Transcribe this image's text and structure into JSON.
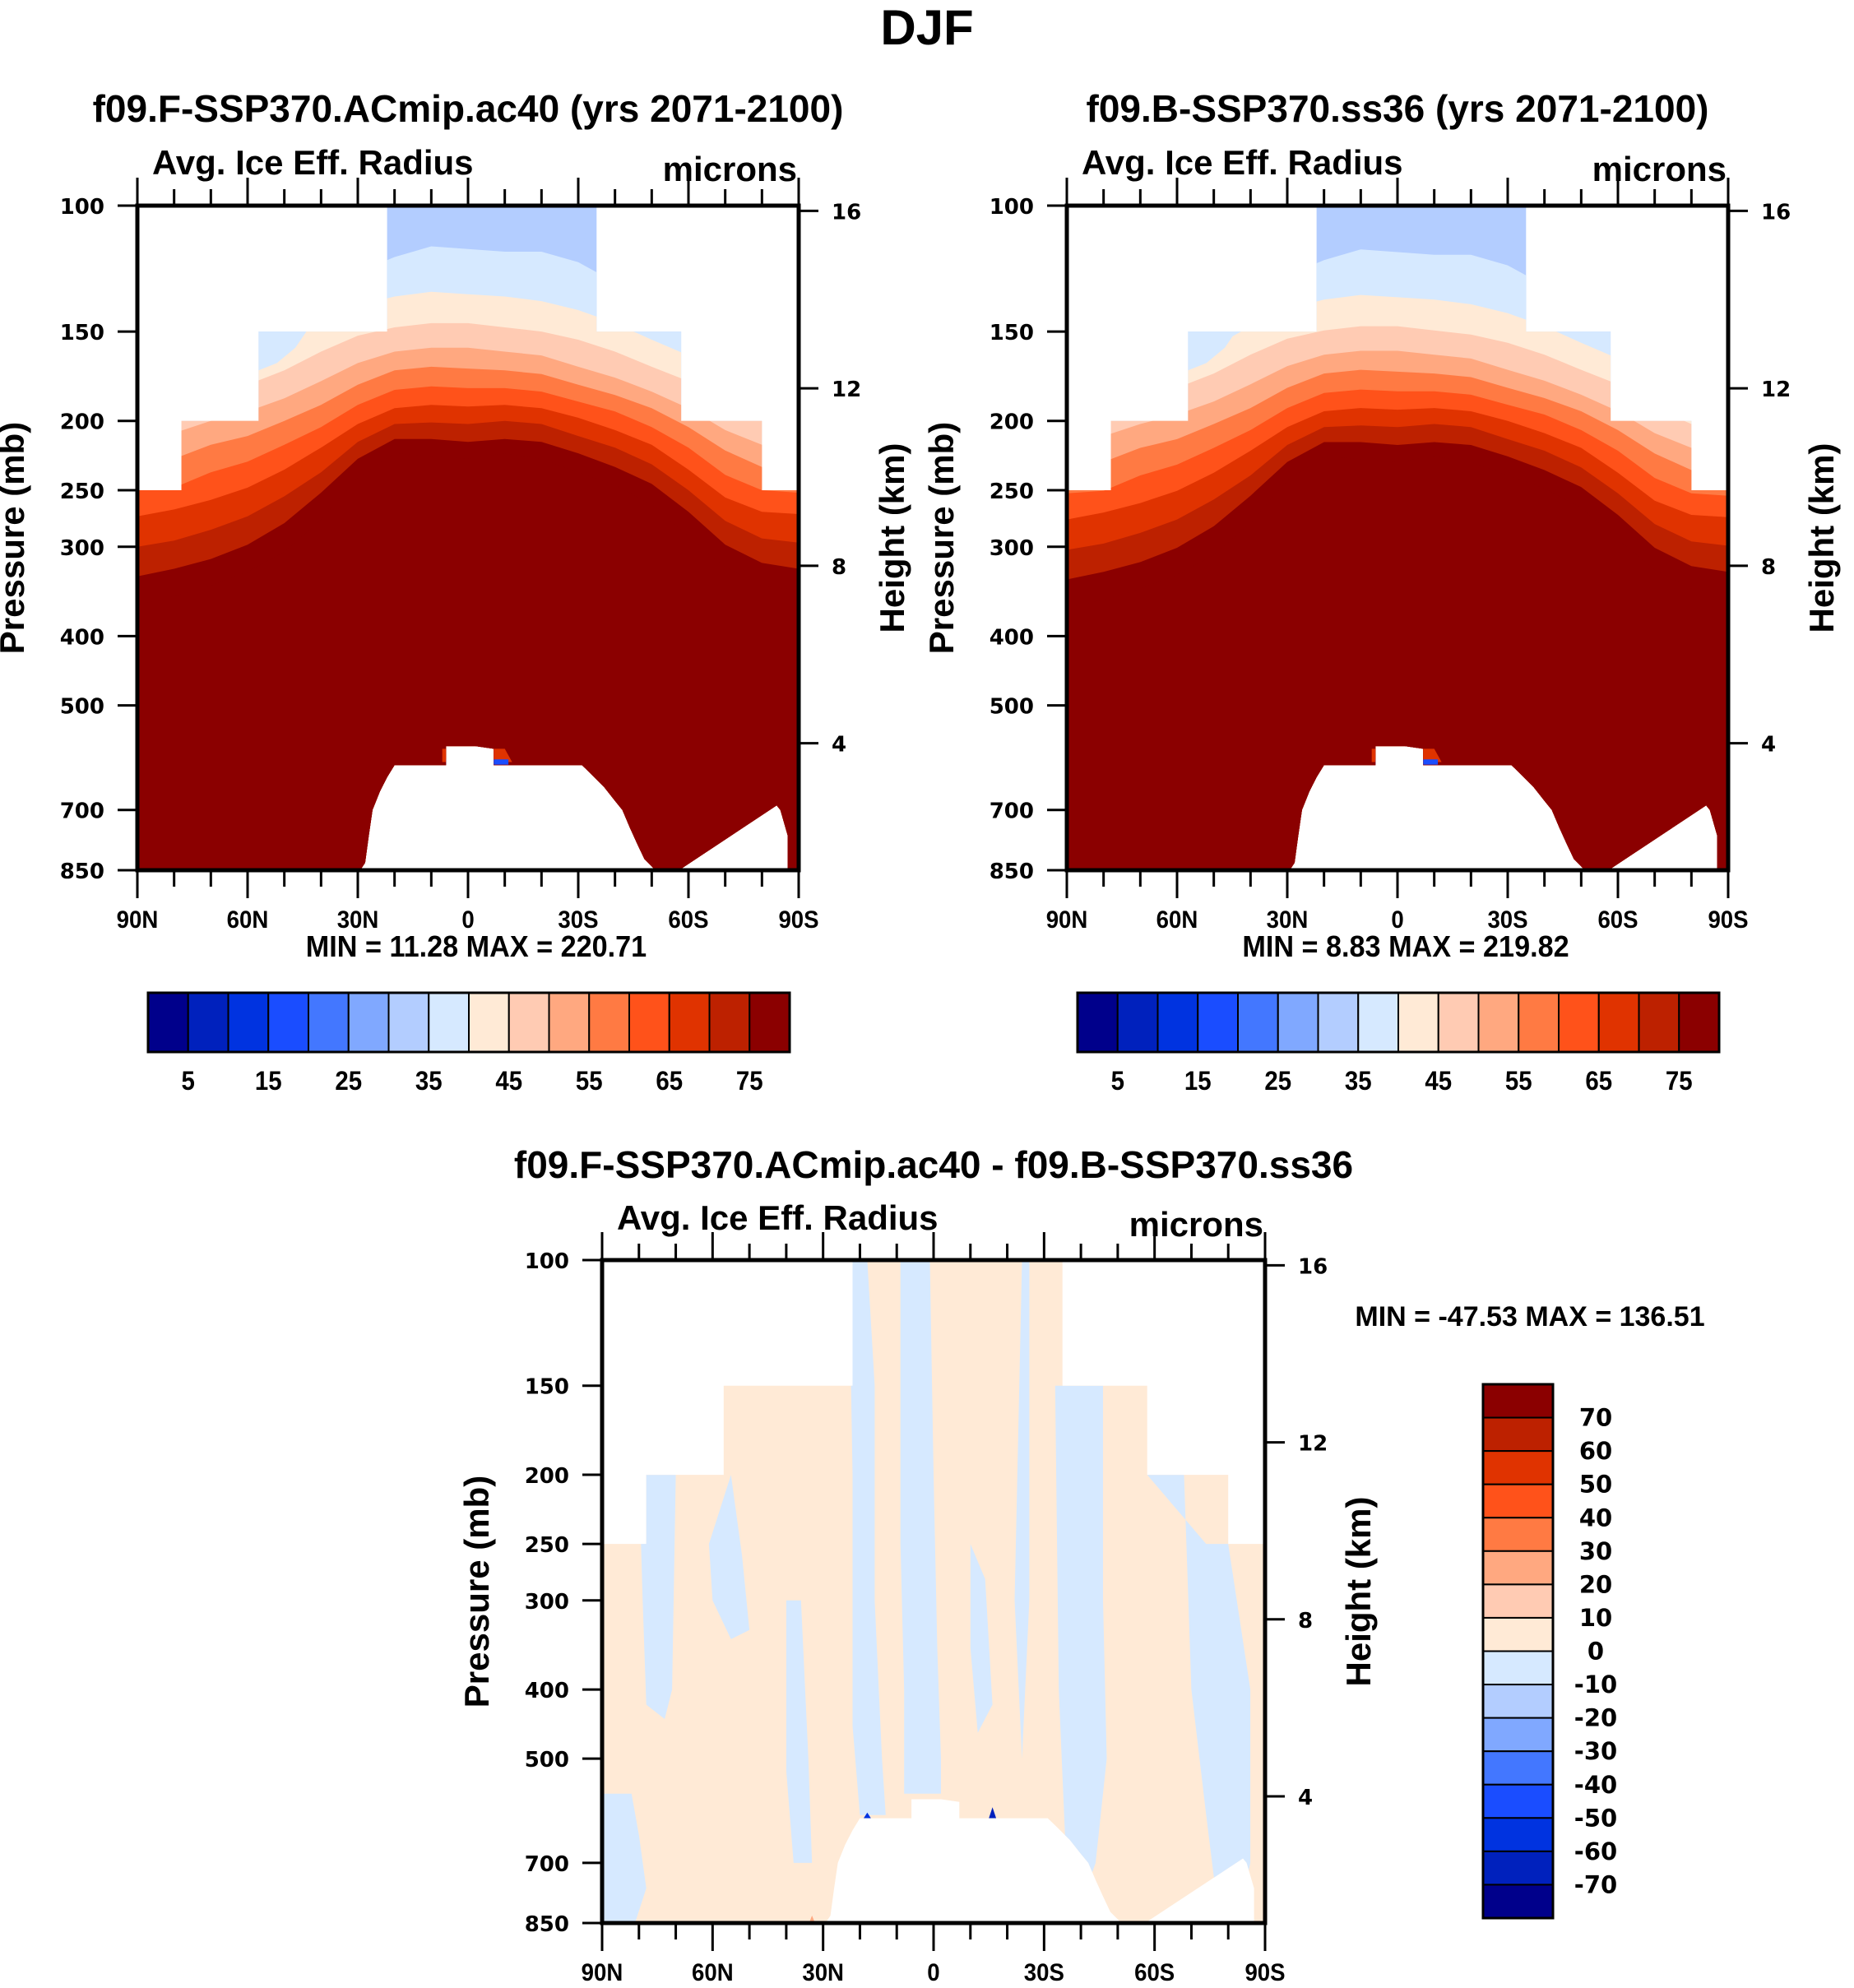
{
  "page_title": "DJF",
  "chart_data": [
    {
      "type": "heatmap",
      "panel": "top-left",
      "title": "f09.F-SSP370.ACmip.ac40 (yrs 2071-2100)",
      "variable": "Avg. Ice Eff. Radius",
      "units": "microns",
      "xlabel": "",
      "ylabel": "Pressure (mb)",
      "ylabel_right": "Height (km)",
      "x_ticks": [
        "90N",
        "60N",
        "30N",
        "0",
        "30S",
        "60S",
        "90S"
      ],
      "x_range": [
        90,
        -90
      ],
      "y_ticks": [
        100,
        150,
        200,
        250,
        300,
        400,
        500,
        700,
        850
      ],
      "y_range": [
        100,
        850
      ],
      "y_scale": "log",
      "y_right_ticks": [
        16,
        12,
        8,
        4
      ],
      "stats": "MIN =  11.28  MAX = 220.71",
      "min": 11.28,
      "max": 220.71,
      "colorbar": {
        "orientation": "horizontal",
        "levels": [
          5,
          10,
          15,
          20,
          25,
          30,
          35,
          40,
          45,
          50,
          55,
          60,
          65,
          70,
          75
        ],
        "labels": [
          "5",
          "15",
          "25",
          "35",
          "45",
          "55",
          "65",
          "75"
        ],
        "colors": [
          "#00008b",
          "#0021bd",
          "#0033e0",
          "#1a4dff",
          "#4377ff",
          "#80a8ff",
          "#b3cdff",
          "#d6e9ff",
          "#ffead6",
          "#ffcbb3",
          "#ffa880",
          "#ff7a43",
          "#ff521a",
          "#e03300",
          "#bd2100",
          "#8b0000"
        ]
      }
    },
    {
      "type": "heatmap",
      "panel": "top-right",
      "title": "f09.B-SSP370.ss36 (yrs 2071-2100)",
      "variable": "Avg. Ice Eff. Radius",
      "units": "microns",
      "xlabel": "",
      "ylabel": "Pressure (mb)",
      "ylabel_right": "Height (km)",
      "x_ticks": [
        "90N",
        "60N",
        "30N",
        "0",
        "30S",
        "60S",
        "90S"
      ],
      "x_range": [
        90,
        -90
      ],
      "y_ticks": [
        100,
        150,
        200,
        250,
        300,
        400,
        500,
        700,
        850
      ],
      "y_range": [
        100,
        850
      ],
      "y_scale": "log",
      "y_right_ticks": [
        16,
        12,
        8,
        4
      ],
      "stats": "MIN =   8.83  MAX = 219.82",
      "min": 8.83,
      "max": 219.82,
      "colorbar": {
        "orientation": "horizontal",
        "levels": [
          5,
          10,
          15,
          20,
          25,
          30,
          35,
          40,
          45,
          50,
          55,
          60,
          65,
          70,
          75
        ],
        "labels": [
          "5",
          "15",
          "25",
          "35",
          "45",
          "55",
          "65",
          "75"
        ],
        "colors": [
          "#00008b",
          "#0021bd",
          "#0033e0",
          "#1a4dff",
          "#4377ff",
          "#80a8ff",
          "#b3cdff",
          "#d6e9ff",
          "#ffead6",
          "#ffcbb3",
          "#ffa880",
          "#ff7a43",
          "#ff521a",
          "#e03300",
          "#bd2100",
          "#8b0000"
        ]
      }
    },
    {
      "type": "heatmap",
      "panel": "bottom",
      "title": "f09.F-SSP370.ACmip.ac40 - f09.B-SSP370.ss36",
      "variable": "Avg. Ice Eff. Radius",
      "units": "microns",
      "xlabel": "",
      "ylabel": "Pressure (mb)",
      "ylabel_right": "Height (km)",
      "x_ticks": [
        "90N",
        "60N",
        "30N",
        "0",
        "30S",
        "60S",
        "90S"
      ],
      "x_range": [
        90,
        -90
      ],
      "y_ticks": [
        100,
        150,
        200,
        250,
        300,
        400,
        500,
        700,
        850
      ],
      "y_range": [
        100,
        850
      ],
      "y_scale": "log",
      "y_right_ticks": [
        16,
        12,
        8,
        4
      ],
      "stats": "MIN = -47.53  MAX = 136.51",
      "min": -47.53,
      "max": 136.51,
      "colorbar": {
        "orientation": "vertical",
        "levels": [
          70,
          60,
          50,
          40,
          30,
          20,
          10,
          0,
          -10,
          -20,
          -30,
          -40,
          -50,
          -60,
          -70
        ],
        "labels": [
          "70",
          "60",
          "50",
          "40",
          "30",
          "20",
          "10",
          "0",
          "-10",
          "-20",
          "-30",
          "-40",
          "-50",
          "-60",
          "-70"
        ],
        "colors": [
          "#8b0000",
          "#bd2100",
          "#e03300",
          "#ff521a",
          "#ff7a43",
          "#ffa880",
          "#ffcbb3",
          "#ffead6",
          "#d6e9ff",
          "#b3cdff",
          "#80a8ff",
          "#4377ff",
          "#1a4dff",
          "#0033e0",
          "#0021bd",
          "#00008b"
        ]
      }
    }
  ]
}
